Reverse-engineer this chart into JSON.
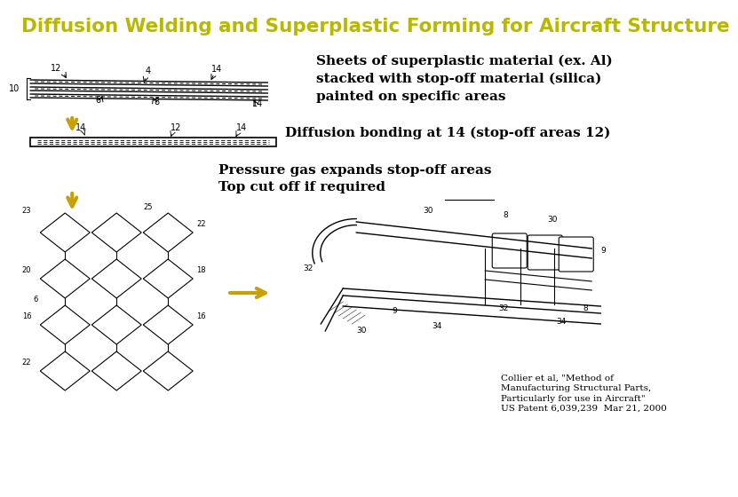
{
  "title": "Diffusion Welding and Superplastic Forming for Aircraft Structure",
  "title_color": "#b8b800",
  "title_fontsize": 15.5,
  "bg_color": "#ffffff",
  "text1": "Sheets of superplastic material (ex. Al)\nstacked with stop-off material (silica)\npainted on specific areas",
  "text2": "Diffusion bonding at 14 (stop-off areas 12)",
  "text3": "Pressure gas expands stop-off areas\nTop cut off if required",
  "citation": "Collier et al, \"Method of\nManufacturing Structural Parts,\nParticularly for use in Aircraft\"\nUS Patent 6,039,239  Mar 21, 2000",
  "arrow_color": "#c8a000",
  "text_color": "#000000",
  "text_fontsize": 11,
  "citation_fontsize": 7.5
}
